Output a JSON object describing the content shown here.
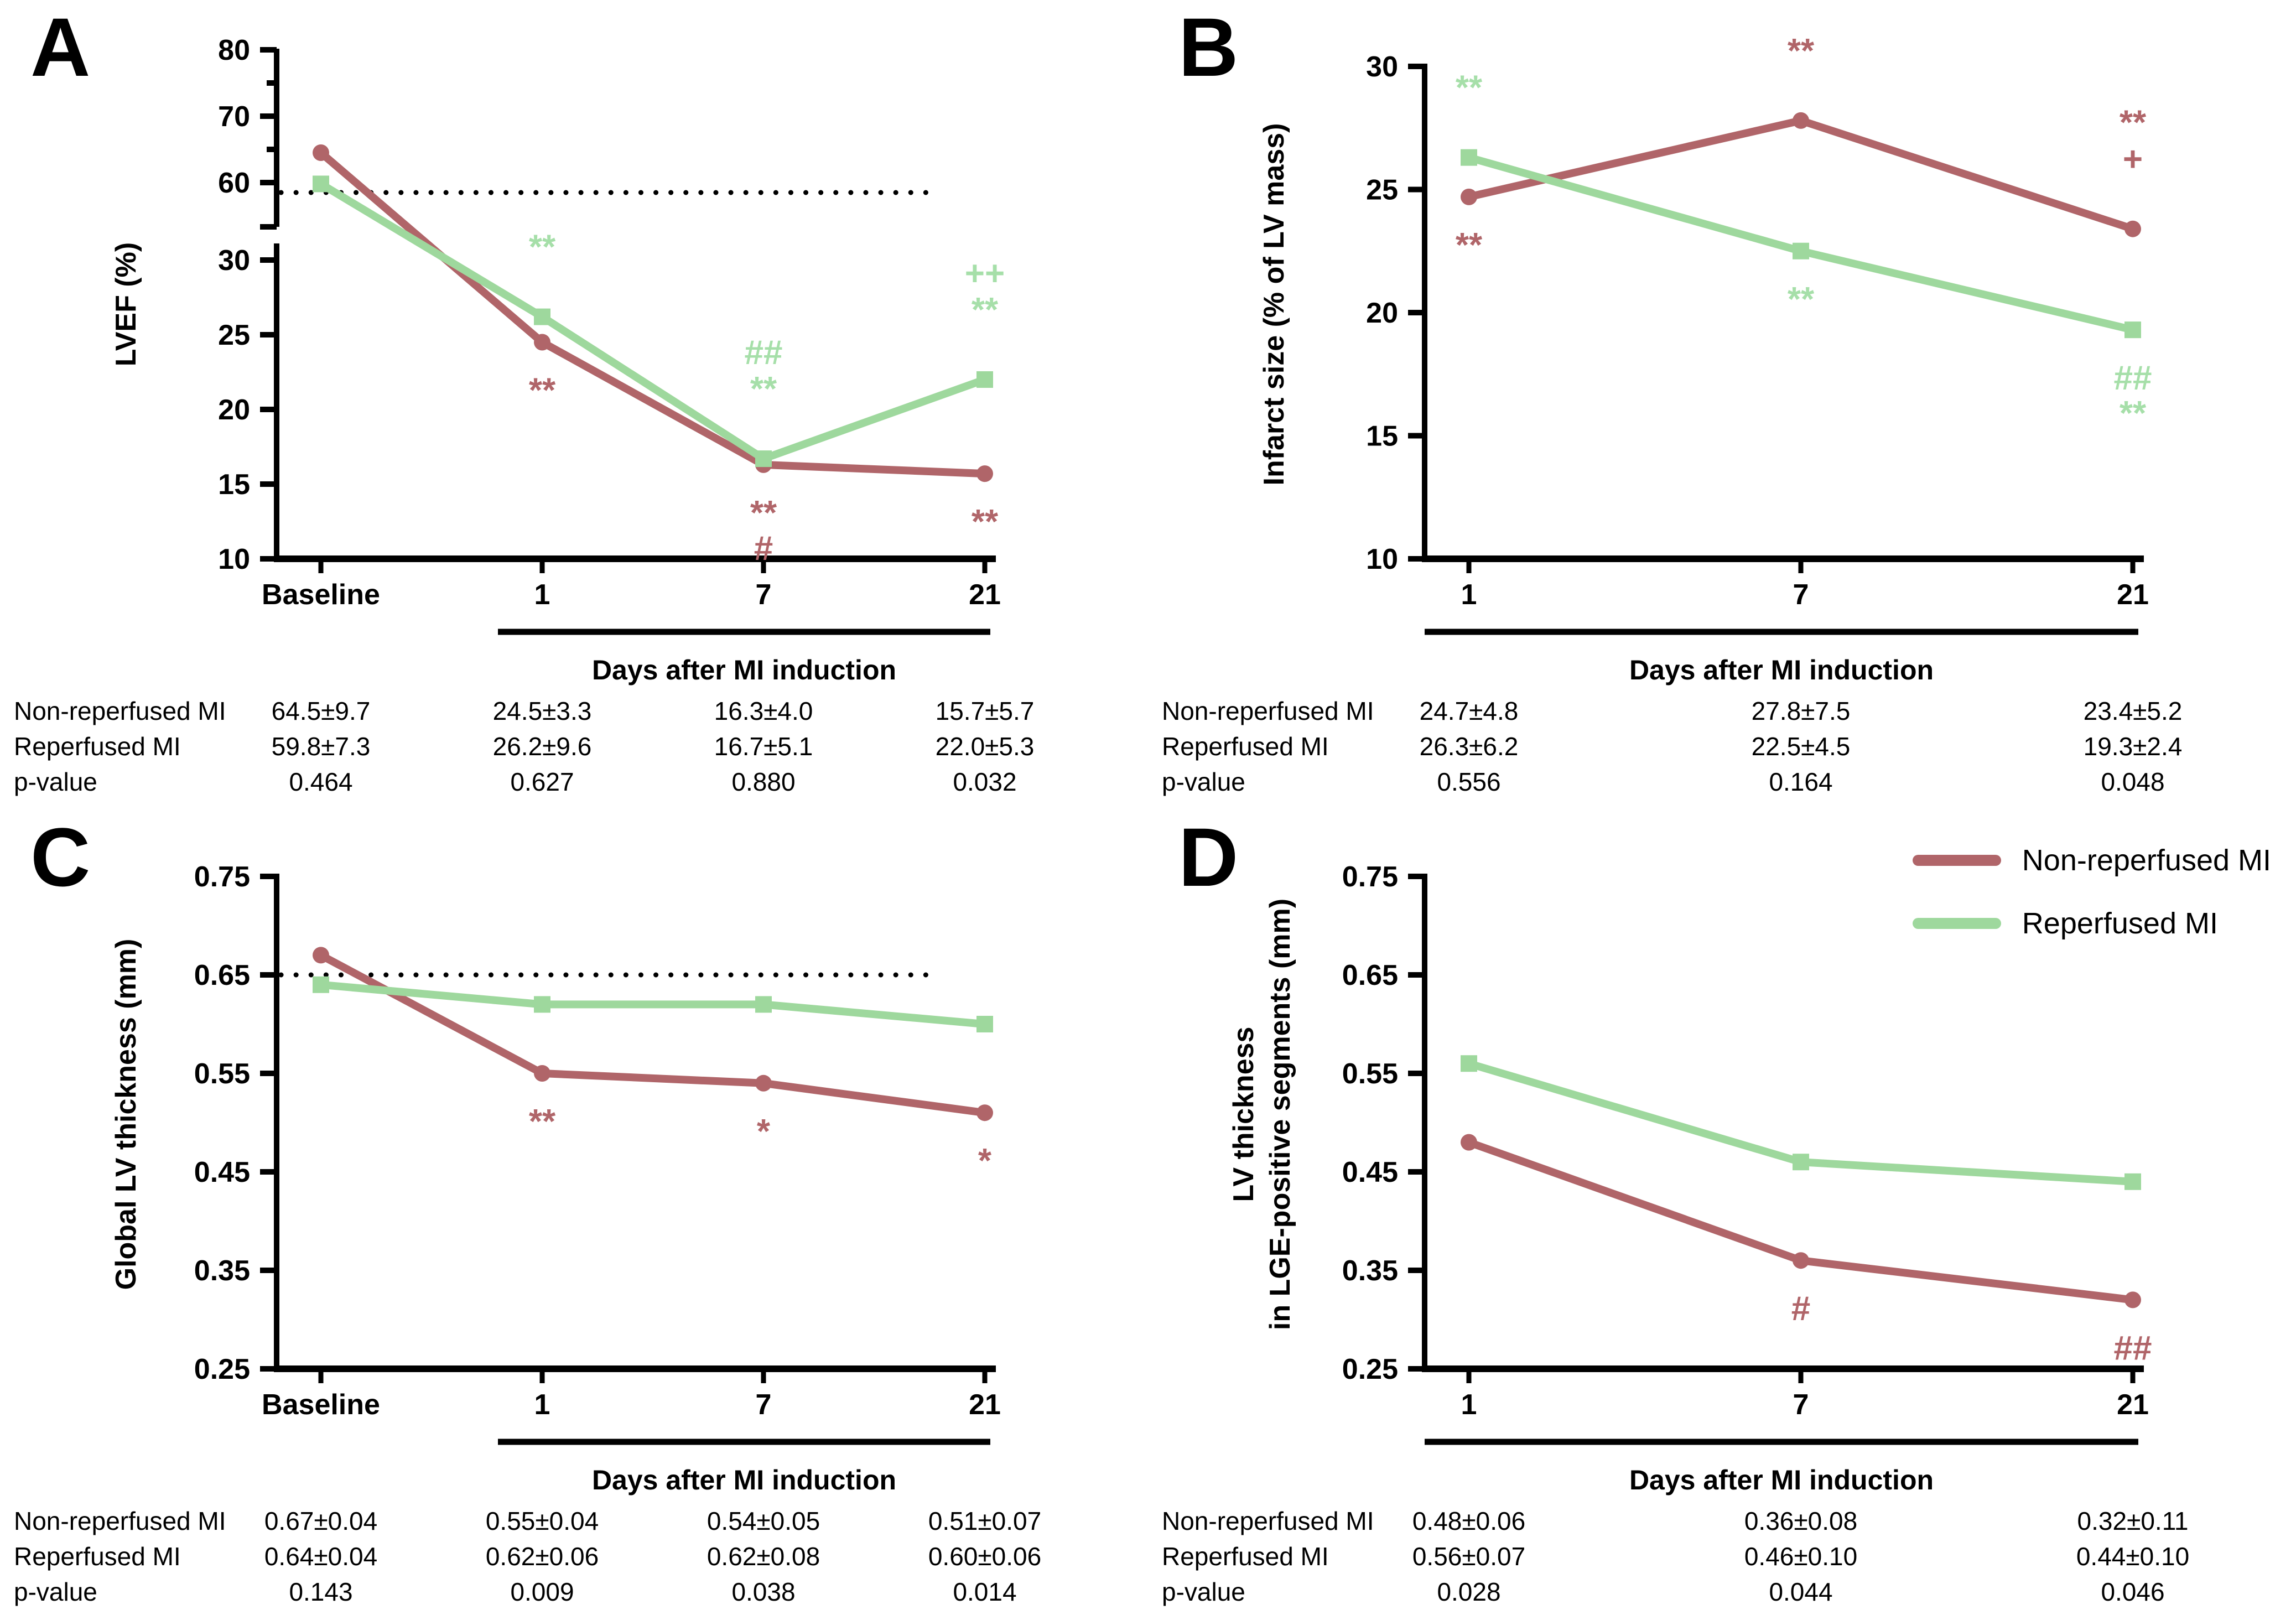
{
  "colors": {
    "non_reperfused": "#b06569",
    "reperfused": "#9ed89d",
    "annotation_green": "#a6dfa9",
    "axis_black": "#000000"
  },
  "legend": {
    "items": [
      {
        "label": "Non-reperfused MI",
        "color_key": "non_reperfused"
      },
      {
        "label": "Reperfused MI",
        "color_key": "reperfused"
      }
    ]
  },
  "chart_data": [
    {
      "panel": "A",
      "type": "line",
      "ylabel_lines": [
        "LVEF (%)"
      ],
      "xlabel": "Days after MI induction",
      "categories": [
        "Baseline",
        "1",
        "7",
        "21"
      ],
      "axis_break": true,
      "upper_ylim": [
        55,
        80
      ],
      "upper_ticks": [
        80,
        70,
        60
      ],
      "upper_minor_ticks": [
        75,
        65
      ],
      "lower_ylim": [
        10,
        30
      ],
      "lower_ticks": [
        30,
        25,
        20,
        15,
        10
      ],
      "ylim": [
        10,
        30
      ],
      "reference_line": 58.5,
      "grid": false,
      "series": [
        {
          "name": "Non-reperfused MI",
          "key": "non_reperfused",
          "marker": "circle",
          "values": [
            64.5,
            24.5,
            16.3,
            15.7
          ]
        },
        {
          "name": "Reperfused MI",
          "key": "reperfused",
          "marker": "square",
          "values": [
            59.8,
            26.2,
            16.7,
            22.0
          ]
        }
      ],
      "annotations": [
        {
          "cat": 1,
          "series": "reperfused",
          "lines": [
            "**"
          ],
          "pos": "above"
        },
        {
          "cat": 1,
          "series": "non_reperfused",
          "lines": [
            "**"
          ],
          "pos": "below"
        },
        {
          "cat": 2,
          "series": "reperfused",
          "lines": [
            "##",
            "**"
          ],
          "pos": "above"
        },
        {
          "cat": 2,
          "series": "non_reperfused",
          "lines": [
            "**",
            "#"
          ],
          "pos": "below"
        },
        {
          "cat": 3,
          "series": "reperfused",
          "lines": [
            "++",
            "**"
          ],
          "pos": "above"
        },
        {
          "cat": 3,
          "series": "non_reperfused",
          "lines": [
            "**"
          ],
          "pos": "below"
        }
      ],
      "table": {
        "rows": [
          {
            "label": "Non-reperfused MI",
            "values": [
              "64.5±9.7",
              "24.5±3.3",
              "16.3±4.0",
              "15.7±5.7"
            ]
          },
          {
            "label": "Reperfused MI",
            "values": [
              "59.8±7.3",
              "26.2±9.6",
              "16.7±5.1",
              "22.0±5.3"
            ]
          },
          {
            "label": "p-value",
            "values": [
              "0.464",
              "0.627",
              "0.880",
              "0.032"
            ]
          }
        ]
      }
    },
    {
      "panel": "B",
      "type": "line",
      "ylabel_lines": [
        "Infarct size (% of LV mass)"
      ],
      "xlabel": "Days after MI induction",
      "categories": [
        "1",
        "7",
        "21"
      ],
      "axis_break": false,
      "ylim": [
        10,
        30
      ],
      "ticks": [
        30,
        25,
        20,
        15,
        10
      ],
      "grid": false,
      "series": [
        {
          "name": "Non-reperfused MI",
          "key": "non_reperfused",
          "marker": "circle",
          "values": [
            24.7,
            27.8,
            23.4
          ]
        },
        {
          "name": "Reperfused MI",
          "key": "reperfused",
          "marker": "square",
          "values": [
            26.3,
            22.5,
            19.3
          ]
        }
      ],
      "annotations": [
        {
          "cat": 0,
          "series": "reperfused",
          "lines": [
            "**"
          ],
          "pos": "above"
        },
        {
          "cat": 0,
          "series": "non_reperfused",
          "lines": [
            "**"
          ],
          "pos": "below"
        },
        {
          "cat": 1,
          "series": "non_reperfused",
          "lines": [
            "**"
          ],
          "pos": "above"
        },
        {
          "cat": 1,
          "series": "reperfused",
          "lines": [
            "**"
          ],
          "pos": "below"
        },
        {
          "cat": 2,
          "series": "non_reperfused",
          "lines": [
            "**",
            "+"
          ],
          "pos": "above"
        },
        {
          "cat": 2,
          "series": "reperfused",
          "lines": [
            "##",
            "**"
          ],
          "pos": "below"
        }
      ],
      "table": {
        "rows": [
          {
            "label": "Non-reperfused MI",
            "values": [
              "24.7±4.8",
              "27.8±7.5",
              "23.4±5.2"
            ]
          },
          {
            "label": "Reperfused MI",
            "values": [
              "26.3±6.2",
              "22.5±4.5",
              "19.3±2.4"
            ]
          },
          {
            "label": "p-value",
            "values": [
              "0.556",
              "0.164",
              "0.048"
            ]
          }
        ]
      }
    },
    {
      "panel": "C",
      "type": "line",
      "ylabel_lines": [
        "Global LV thickness (mm)"
      ],
      "xlabel": "Days after MI induction",
      "categories": [
        "Baseline",
        "1",
        "7",
        "21"
      ],
      "axis_break": false,
      "ylim": [
        0.25,
        0.75
      ],
      "ticks": [
        "0.75",
        "0.65",
        "0.55",
        "0.45",
        "0.35",
        "0.25"
      ],
      "reference_line": 0.65,
      "grid": false,
      "series": [
        {
          "name": "Non-reperfused MI",
          "key": "non_reperfused",
          "marker": "circle",
          "values": [
            0.67,
            0.55,
            0.54,
            0.51
          ]
        },
        {
          "name": "Reperfused MI",
          "key": "reperfused",
          "marker": "square",
          "values": [
            0.64,
            0.62,
            0.62,
            0.6
          ]
        }
      ],
      "annotations": [
        {
          "cat": 1,
          "series": "non_reperfused",
          "lines": [
            "**"
          ],
          "pos": "below"
        },
        {
          "cat": 2,
          "series": "non_reperfused",
          "lines": [
            "*"
          ],
          "pos": "below"
        },
        {
          "cat": 3,
          "series": "non_reperfused",
          "lines": [
            "*"
          ],
          "pos": "below"
        }
      ],
      "table": {
        "rows": [
          {
            "label": "Non-reperfused MI",
            "values": [
              "0.67±0.04",
              "0.55±0.04",
              "0.54±0.05",
              "0.51±0.07"
            ]
          },
          {
            "label": "Reperfused MI",
            "values": [
              "0.64±0.04",
              "0.62±0.06",
              "0.62±0.08",
              "0.60±0.06"
            ]
          },
          {
            "label": "p-value",
            "values": [
              "0.143",
              "0.009",
              "0.038",
              "0.014"
            ]
          }
        ]
      }
    },
    {
      "panel": "D",
      "type": "line",
      "ylabel_lines": [
        "LV thickness",
        "in LGE-positive segments (mm)"
      ],
      "xlabel": "Days after MI induction",
      "categories": [
        "1",
        "7",
        "21"
      ],
      "axis_break": false,
      "ylim": [
        0.25,
        0.75
      ],
      "ticks": [
        "0.75",
        "0.65",
        "0.55",
        "0.45",
        "0.35",
        "0.25"
      ],
      "grid": false,
      "series": [
        {
          "name": "Non-reperfused MI",
          "key": "non_reperfused",
          "marker": "circle",
          "values": [
            0.48,
            0.36,
            0.32
          ]
        },
        {
          "name": "Reperfused MI",
          "key": "reperfused",
          "marker": "square",
          "values": [
            0.56,
            0.46,
            0.44
          ]
        }
      ],
      "annotations": [
        {
          "cat": 1,
          "series": "non_reperfused",
          "lines": [
            "#"
          ],
          "pos": "below"
        },
        {
          "cat": 2,
          "series": "non_reperfused",
          "lines": [
            "##"
          ],
          "pos": "below"
        }
      ],
      "table": {
        "rows": [
          {
            "label": "Non-reperfused MI",
            "values": [
              "0.48±0.06",
              "0.36±0.08",
              "0.32±0.11"
            ]
          },
          {
            "label": "Reperfused MI",
            "values": [
              "0.56±0.07",
              "0.46±0.10",
              "0.44±0.10"
            ]
          },
          {
            "label": "p-value",
            "values": [
              "0.028",
              "0.044",
              "0.046"
            ]
          }
        ]
      }
    }
  ]
}
